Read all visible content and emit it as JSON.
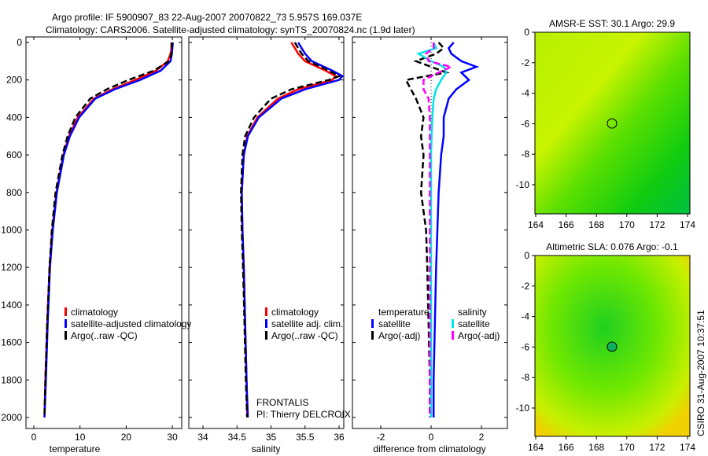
{
  "title_line1": "Argo profile: IF 5900907_83 22-Aug-2007 20070822_73 5.957S 169.037E",
  "title_line2": "Climatology: CARS2006. Satellite-adjusted climatology: synTS_20070824.nc (1.9d later)",
  "colors": {
    "climatology": "#ff0000",
    "satellite": "#0000ff",
    "argo": "#000000",
    "salinity_sat": "#00e5e5",
    "salinity_argo": "#ff00ff"
  },
  "chart_data": [
    {
      "type": "line",
      "xlabel": "temperature",
      "ylabel": "",
      "xlim": [
        -2,
        32
      ],
      "ylim": [
        2000,
        0
      ],
      "xticks": [
        "0",
        "10",
        "20",
        "30"
      ],
      "yticks": [
        "0",
        "200",
        "400",
        "600",
        "800",
        "1000",
        "1200",
        "1400",
        "1600",
        "1800",
        "2000"
      ],
      "depth": [
        0,
        30,
        60,
        100,
        150,
        200,
        250,
        300,
        400,
        500,
        600,
        800,
        1000,
        1200,
        1500,
        1800,
        2000
      ],
      "legend": [
        "climatology",
        "satellite-adjusted climatology",
        "Argo(..raw -QC)"
      ],
      "series": [
        {
          "name": "climatology",
          "color": "#ff0000",
          "values": [
            29.8,
            29.8,
            29.6,
            29.0,
            26.5,
            22.0,
            17.0,
            13.0,
            9.5,
            7.6,
            6.4,
            4.9,
            4.0,
            3.4,
            2.9,
            2.5,
            2.3
          ]
        },
        {
          "name": "satellite-adjusted climatology",
          "color": "#0000ff",
          "values": [
            30.1,
            30.0,
            29.9,
            29.6,
            27.5,
            23.0,
            17.5,
            13.3,
            9.8,
            7.8,
            6.5,
            5.0,
            4.1,
            3.5,
            3.0,
            2.6,
            2.3
          ]
        },
        {
          "name": "Argo(..raw -QC)",
          "color": "#000000",
          "dashed": true,
          "values": [
            29.9,
            29.9,
            29.8,
            29.3,
            26.0,
            20.5,
            15.8,
            12.2,
            9.0,
            7.3,
            6.2,
            4.7,
            3.9,
            3.4,
            2.9,
            2.5,
            2.3
          ]
        }
      ]
    },
    {
      "type": "line",
      "xlabel": "salinity",
      "xlim": [
        33.85,
        36.05
      ],
      "ylim": [
        2000,
        0
      ],
      "xticks": [
        "34",
        "34.5",
        "35",
        "35.5",
        "36"
      ],
      "depth": [
        0,
        30,
        60,
        100,
        150,
        180,
        200,
        250,
        300,
        400,
        500,
        600,
        800,
        1000,
        1200,
        1500,
        1800,
        2000
      ],
      "legend": [
        "climatology",
        "satellite adj. clim.",
        "Argo(..raw -QC)"
      ],
      "annotation": [
        "FRONTALIS",
        "PI: Thierry DELCROIX"
      ],
      "series": [
        {
          "name": "climatology",
          "color": "#ff0000",
          "values": [
            35.3,
            35.35,
            35.4,
            35.5,
            35.8,
            35.95,
            35.9,
            35.4,
            35.1,
            34.8,
            34.65,
            34.6,
            34.57,
            34.58,
            34.6,
            34.62,
            34.64,
            34.65
          ]
        },
        {
          "name": "satellite adj. clim.",
          "color": "#0000ff",
          "values": [
            35.4,
            35.45,
            35.5,
            35.6,
            35.9,
            36.05,
            36.0,
            35.5,
            35.15,
            34.82,
            34.66,
            34.6,
            34.57,
            34.58,
            34.6,
            34.62,
            34.64,
            34.66
          ]
        },
        {
          "name": "Argo(..raw -QC)",
          "color": "#000000",
          "dashed": true,
          "values": [
            35.35,
            35.4,
            35.45,
            35.55,
            35.85,
            36.0,
            35.85,
            35.3,
            35.0,
            34.75,
            34.62,
            34.58,
            34.56,
            34.57,
            34.59,
            34.61,
            34.63,
            34.65
          ]
        }
      ]
    },
    {
      "type": "line",
      "xlabel": "difference from climatology",
      "xlim": [
        -3,
        3
      ],
      "ylim": [
        2000,
        0
      ],
      "xticks": [
        "-2",
        "0",
        "2"
      ],
      "depth": [
        0,
        30,
        60,
        100,
        130,
        160,
        200,
        250,
        300,
        400,
        500,
        600,
        800,
        1000,
        1200,
        1500,
        1800,
        2000
      ],
      "legend_headers": [
        "temperature",
        "salinity"
      ],
      "legend": [
        "satellite",
        "Argo(-adj)",
        "satellite",
        "Argo(-adj)"
      ],
      "series": [
        {
          "name": "temperature satellite",
          "color": "#0000ff",
          "values": [
            0.9,
            0.7,
            0.8,
            1.2,
            1.8,
            1.2,
            1.5,
            1.0,
            0.7,
            0.5,
            0.5,
            0.4,
            0.3,
            0.25,
            0.2,
            0.15,
            0.1,
            0.1
          ]
        },
        {
          "name": "temperature Argo(-adj)",
          "color": "#000000",
          "dashed": true,
          "values": [
            0.3,
            0.5,
            0.2,
            -0.6,
            0.0,
            0.6,
            -1.0,
            -0.8,
            -0.6,
            -0.3,
            -0.4,
            -0.3,
            -0.4,
            -0.2,
            -0.15,
            -0.1,
            -0.05,
            -0.05
          ]
        },
        {
          "name": "salinity satellite",
          "color": "#00e5e5",
          "values": [
            0.1,
            0.2,
            -0.5,
            0.0,
            0.5,
            0.6,
            0.4,
            0.2,
            0.1,
            0.05,
            0.02,
            0.0,
            0.0,
            0.0,
            0.0,
            0.0,
            0.0,
            0.0
          ]
        },
        {
          "name": "salinity Argo(-adj)",
          "color": "#ff00ff",
          "dashed": true,
          "values": [
            0.1,
            0.1,
            -0.2,
            -0.1,
            0.8,
            0.3,
            -0.3,
            -0.3,
            -0.1,
            -0.05,
            -0.05,
            -0.05,
            -0.05,
            -0.05,
            -0.05,
            -0.05,
            -0.05,
            -0.05
          ]
        }
      ]
    },
    {
      "type": "heatmap",
      "title": "AMSR-E SST: 30.1 Argo: 29.9",
      "xlim": [
        164,
        174
      ],
      "ylim": [
        -12,
        0
      ],
      "xticks": [
        "164",
        "166",
        "168",
        "170",
        "172",
        "174"
      ],
      "yticks": [
        "0",
        "-2",
        "-4",
        "-6",
        "-8",
        "-10"
      ],
      "marker": {
        "lon": 169.037,
        "lat": -5.957
      }
    },
    {
      "type": "heatmap",
      "title": "Altimetric SLA: 0.076 Argo: -0.1",
      "xlim": [
        164,
        174
      ],
      "ylim": [
        -12,
        0
      ],
      "xticks": [
        "164",
        "166",
        "168",
        "170",
        "172",
        "174"
      ],
      "yticks": [
        "0",
        "-2",
        "-4",
        "-6",
        "-8",
        "-10"
      ],
      "marker": {
        "lon": 169.037,
        "lat": -5.957
      }
    }
  ],
  "credit": "CSIRO 31-Aug-2007 10:37:51"
}
